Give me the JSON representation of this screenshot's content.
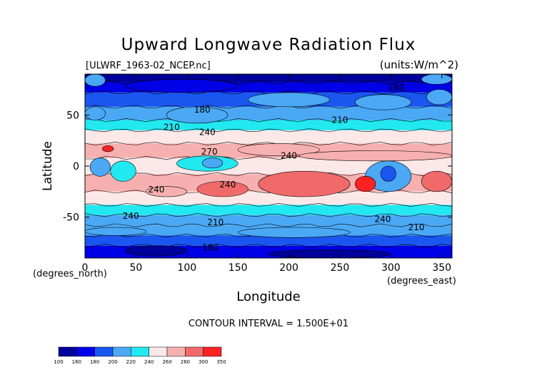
{
  "chart_data": {
    "type": "heatmap",
    "title": "Upward Longwave Radiation Flux",
    "file_label": "[ULWRF_1963-02_NCEP.nc]",
    "units_label": "(units:W/m^2)",
    "xlabel": "Longitude",
    "ylabel": "Latitude",
    "x_units": "(degrees_east)",
    "y_units": "(degrees_north)",
    "xlim": [
      0,
      360
    ],
    "ylim": [
      -90,
      90
    ],
    "x_ticks": [
      0,
      50,
      100,
      150,
      200,
      250,
      300,
      350
    ],
    "y_ticks": [
      -50,
      0,
      50
    ],
    "contour_interval_text": "CONTOUR INTERVAL = 1.500E+01",
    "colorbar": {
      "levels": [
        "100",
        "160",
        "180",
        "200",
        "220",
        "240",
        "260",
        "280",
        "300",
        "350"
      ],
      "colors": [
        "#00009a",
        "#0000e6",
        "#1a57f0",
        "#4aa8f5",
        "#22e8f0",
        "#fce8e8",
        "#f7b0b0",
        "#f06a6a",
        "#ff2222"
      ]
    },
    "contour_labels": [
      {
        "text": "180",
        "lon": 305,
        "lat": 77
      },
      {
        "text": "180",
        "lon": 115,
        "lat": 55
      },
      {
        "text": "210",
        "lon": 250,
        "lat": 45
      },
      {
        "text": "240",
        "lon": 120,
        "lat": 33
      },
      {
        "text": "210",
        "lon": 85,
        "lat": 38
      },
      {
        "text": "270",
        "lon": 122,
        "lat": 14
      },
      {
        "text": "240",
        "lon": 200,
        "lat": 10
      },
      {
        "text": "240",
        "lon": 140,
        "lat": -18
      },
      {
        "text": "240",
        "lon": 70,
        "lat": -23
      },
      {
        "text": "240",
        "lon": 45,
        "lat": -49
      },
      {
        "text": "240",
        "lon": 292,
        "lat": -52
      },
      {
        "text": "210",
        "lon": 128,
        "lat": -55
      },
      {
        "text": "210",
        "lon": 325,
        "lat": -60
      },
      {
        "text": "180",
        "lon": 123,
        "lat": -80
      }
    ],
    "bands": [
      {
        "lat": [
          90,
          82
        ],
        "value": 150
      },
      {
        "lat": [
          82,
          72
        ],
        "value": 175
      },
      {
        "lat": [
          72,
          58
        ],
        "value": 195
      },
      {
        "lat": [
          58,
          45
        ],
        "value": 215
      },
      {
        "lat": [
          45,
          35
        ],
        "value": 235
      },
      {
        "lat": [
          35,
          22
        ],
        "value": 255
      },
      {
        "lat": [
          22,
          8
        ],
        "value": 270
      },
      {
        "lat": [
          8,
          -8
        ],
        "value": 250
      },
      {
        "lat": [
          -8,
          -25
        ],
        "value": 268
      },
      {
        "lat": [
          -25,
          -38
        ],
        "value": 255
      },
      {
        "lat": [
          -38,
          -48
        ],
        "value": 238
      },
      {
        "lat": [
          -48,
          -58
        ],
        "value": 212
      },
      {
        "lat": [
          -58,
          -68
        ],
        "value": 200
      },
      {
        "lat": [
          -68,
          -78
        ],
        "value": 190
      },
      {
        "lat": [
          -78,
          -90
        ],
        "value": 165
      }
    ],
    "anomalies": [
      {
        "lon": [
          0,
          20
        ],
        "lat": [
          90,
          78
        ],
        "value": 200
      },
      {
        "lon": [
          330,
          360
        ],
        "lat": [
          90,
          80
        ],
        "value": 200
      },
      {
        "lon": [
          40,
          150
        ],
        "lat": [
          85,
          72
        ],
        "value": 165
      },
      {
        "lon": [
          160,
          240
        ],
        "lat": [
          72,
          58
        ],
        "value": 215
      },
      {
        "lon": [
          265,
          320
        ],
        "lat": [
          70,
          55
        ],
        "value": 215
      },
      {
        "lon": [
          335,
          360
        ],
        "lat": [
          75,
          60
        ],
        "value": 215
      },
      {
        "lon": [
          80,
          140
        ],
        "lat": [
          58,
          42
        ],
        "value": 200
      },
      {
        "lon": [
          0,
          20
        ],
        "lat": [
          58,
          45
        ],
        "value": 200
      },
      {
        "lon": [
          5,
          25
        ],
        "lat": [
          8,
          -10
        ],
        "value": 210
      },
      {
        "lon": [
          25,
          50
        ],
        "lat": [
          5,
          -15
        ],
        "value": 225
      },
      {
        "lon": [
          90,
          150
        ],
        "lat": [
          10,
          -5
        ],
        "value": 225
      },
      {
        "lon": [
          115,
          135
        ],
        "lat": [
          8,
          -2
        ],
        "value": 200
      },
      {
        "lon": [
          275,
          320
        ],
        "lat": [
          5,
          -25
        ],
        "value": 215
      },
      {
        "lon": [
          290,
          305
        ],
        "lat": [
          0,
          -15
        ],
        "value": 185
      },
      {
        "lon": [
          17,
          28
        ],
        "lat": [
          20,
          14
        ],
        "value": 310
      },
      {
        "lon": [
          170,
          260
        ],
        "lat": [
          -5,
          -30
        ],
        "value": 282
      },
      {
        "lon": [
          265,
          285
        ],
        "lat": [
          -10,
          -25
        ],
        "value": 305
      },
      {
        "lon": [
          330,
          360
        ],
        "lat": [
          -5,
          -25
        ],
        "value": 280
      },
      {
        "lon": [
          110,
          160
        ],
        "lat": [
          -15,
          -30
        ],
        "value": 280
      },
      {
        "lon": [
          60,
          100
        ],
        "lat": [
          -20,
          -30
        ],
        "value": 278
      },
      {
        "lon": [
          150,
          230
        ],
        "lat": [
          22,
          10
        ],
        "value": 278
      },
      {
        "lon": [
          210,
          360
        ],
        "lat": [
          15,
          5
        ],
        "value": 272
      },
      {
        "lon": [
          0,
          60
        ],
        "lat": [
          -60,
          -68
        ],
        "value": 210
      },
      {
        "lon": [
          150,
          260
        ],
        "lat": [
          -60,
          -70
        ],
        "value": 212
      },
      {
        "lon": [
          40,
          100
        ],
        "lat": [
          -78,
          -88
        ],
        "value": 150
      },
      {
        "lon": [
          180,
          300
        ],
        "lat": [
          -82,
          -90
        ],
        "value": 150
      }
    ]
  }
}
